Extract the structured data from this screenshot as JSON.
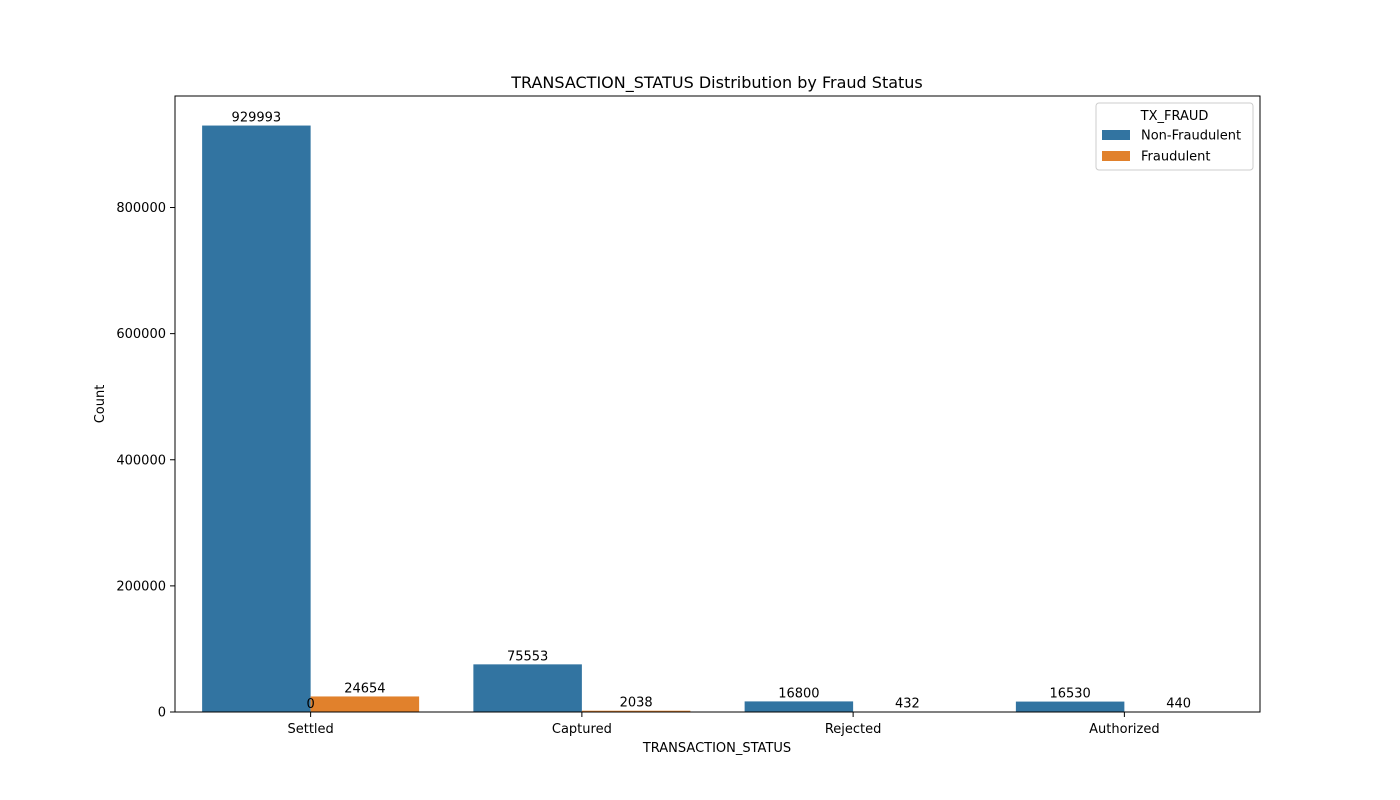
{
  "chart_data": {
    "type": "bar",
    "title": "TRANSACTION_STATUS Distribution by Fraud Status",
    "xlabel": "TRANSACTION_STATUS",
    "ylabel": "Count",
    "categories": [
      "Settled",
      "Captured",
      "Rejected",
      "Authorized"
    ],
    "series": [
      {
        "name": "Non-Fraudulent",
        "color": "#3274a1",
        "values": [
          929993,
          75553,
          16800,
          16530
        ]
      },
      {
        "name": "Fraudulent",
        "color": "#e1812c",
        "values": [
          24654,
          2038,
          432,
          440
        ]
      }
    ],
    "extra_labels": [
      "0"
    ],
    "ylim": [
      0,
      976846
    ],
    "yticks": [
      0,
      200000,
      400000,
      600000,
      800000
    ],
    "legend": {
      "title": "TX_FRAUD",
      "placement": "top-right"
    },
    "grid": false
  }
}
